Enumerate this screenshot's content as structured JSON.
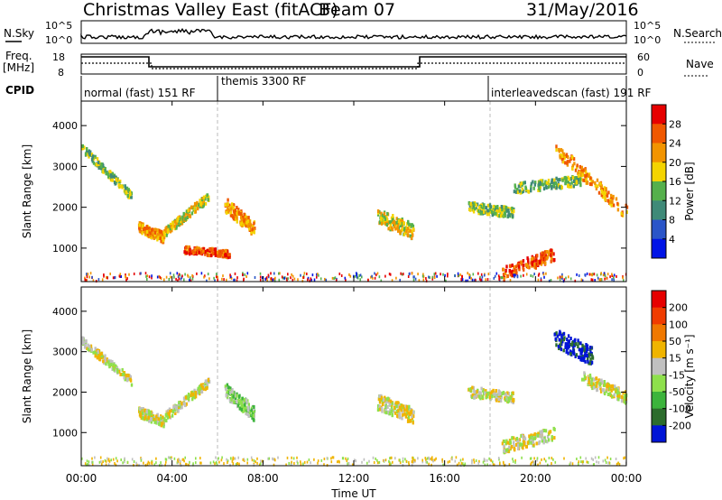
{
  "header": {
    "title": "Christmas Valley East (fitACF)",
    "beam": "Beam 07",
    "date": "31/May/2016"
  },
  "panels": {
    "nsky": {
      "label": "N.Sky",
      "left_ticks": [
        "10^5",
        "10^0"
      ],
      "right_ticks": [
        "10^5",
        "10^0"
      ],
      "right_label": "N.Search"
    },
    "freq": {
      "label_line1": "Freq.",
      "label_line2": "[MHz]",
      "left_ticks": [
        "18",
        "8"
      ],
      "right_ticks": [
        "60",
        "0"
      ],
      "right_label": "Nave"
    },
    "cpid": {
      "label": "CPID",
      "segments": [
        "normal (fast) 151 RF",
        "themis 3300 RF",
        "interleavedscan (fast) 191 RF"
      ]
    }
  },
  "chart_data": [
    {
      "type": "heatmap",
      "name": "power",
      "ylabel": "Slant Range [km]",
      "yticks": [
        "1000",
        "2000",
        "3000",
        "4000"
      ],
      "ylim": [
        180,
        4600
      ],
      "colorbar_label": "Power [dB]",
      "colorbar_ticks": [
        "4",
        "8",
        "12",
        "16",
        "20",
        "24",
        "28"
      ],
      "colorbar_colors": [
        "#0014e6",
        "#2a55c8",
        "#3f8a78",
        "#55b04c",
        "#f4d400",
        "#f29400",
        "#f05800",
        "#e60000"
      ],
      "features": [
        {
          "t": [
            0.0,
            2.2
          ],
          "r": [
            3500,
            2300
          ],
          "w": 200,
          "level": 3
        },
        {
          "t": [
            2.5,
            3.6
          ],
          "r": [
            1550,
            1300
          ],
          "w": 250,
          "level": 5
        },
        {
          "t": [
            3.6,
            5.6
          ],
          "r": [
            1400,
            2300
          ],
          "w": 220,
          "level": 4
        },
        {
          "t": [
            6.3,
            7.6
          ],
          "r": [
            2100,
            1500
          ],
          "w": 350,
          "level": 5
        },
        {
          "t": [
            4.5,
            6.5
          ],
          "r": [
            1000,
            900
          ],
          "w": 180,
          "level": 6
        },
        {
          "t": [
            13.0,
            14.6
          ],
          "r": [
            1800,
            1450
          ],
          "w": 380,
          "level": 4
        },
        {
          "t": [
            17.0,
            19.0
          ],
          "r": [
            2050,
            1900
          ],
          "w": 250,
          "level": 3
        },
        {
          "t": [
            18.5,
            20.8
          ],
          "r": [
            400,
            900
          ],
          "w": 320,
          "level": 6
        },
        {
          "t": [
            20.8,
            24.0
          ],
          "r": [
            3500,
            1900
          ],
          "w": 330,
          "level": 5
        },
        {
          "t": [
            19.0,
            22.0
          ],
          "r": [
            2500,
            2700
          ],
          "w": 250,
          "level": 3
        }
      ]
    },
    {
      "type": "heatmap",
      "name": "velocity",
      "ylabel": "Slant Range [km]",
      "yticks": [
        "1000",
        "2000",
        "3000",
        "4000"
      ],
      "ylim": [
        180,
        4600
      ],
      "colorbar_label": "Velocity [m s⁻¹]",
      "colorbar_ticks": [
        "200",
        "100",
        "50",
        "15",
        "-15",
        "-50",
        "-100",
        "-200"
      ],
      "colorbar_colors": [
        "#0014d6",
        "#2c6c2c",
        "#3cb43c",
        "#8ee04c",
        "#c0c0c0",
        "#f0b400",
        "#f07800",
        "#f03c00",
        "#e60000"
      ],
      "features": [
        {
          "t": [
            0.0,
            2.2
          ],
          "r": [
            3300,
            2300
          ],
          "w": 200,
          "level": 4
        },
        {
          "t": [
            2.5,
            3.6
          ],
          "r": [
            1550,
            1300
          ],
          "w": 250,
          "level": 4
        },
        {
          "t": [
            3.6,
            5.6
          ],
          "r": [
            1400,
            2300
          ],
          "w": 220,
          "level": 4
        },
        {
          "t": [
            6.3,
            7.6
          ],
          "r": [
            2100,
            1500
          ],
          "w": 350,
          "level": 3
        },
        {
          "t": [
            13.0,
            14.6
          ],
          "r": [
            1800,
            1450
          ],
          "w": 380,
          "level": 4
        },
        {
          "t": [
            17.0,
            19.0
          ],
          "r": [
            2050,
            1900
          ],
          "w": 250,
          "level": 4
        },
        {
          "t": [
            18.5,
            20.8
          ],
          "r": [
            700,
            1000
          ],
          "w": 320,
          "level": 4
        },
        {
          "t": [
            20.8,
            22.5
          ],
          "r": [
            3400,
            2900
          ],
          "w": 450,
          "level": 0
        },
        {
          "t": [
            22.0,
            24.0
          ],
          "r": [
            2400,
            1900
          ],
          "w": 300,
          "level": 4
        }
      ]
    }
  ],
  "xaxis": {
    "label": "Time UT",
    "ticks": [
      "00:00",
      "04:00",
      "08:00",
      "12:00",
      "16:00",
      "20:00",
      "00:00"
    ],
    "range_hours": [
      0,
      24
    ],
    "dashed_hours": [
      6,
      18
    ]
  }
}
